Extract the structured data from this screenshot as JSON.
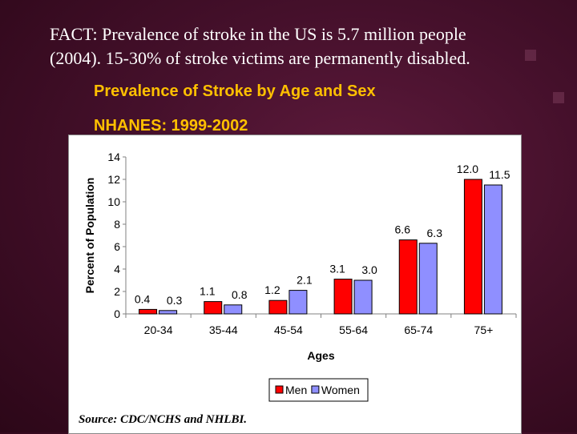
{
  "slide": {
    "fact_line1": "FACT:  Prevalence of stroke in the US is 5.7 million people",
    "fact_line2": "(2004).  15-30% of stroke victims are permanently disabled.",
    "title": "Prevalence of Stroke by Age and Sex",
    "subtitle": "NHANES: 1999-2002",
    "source": "Source: CDC/NCHS and NHLBI."
  },
  "chart_data": {
    "type": "bar",
    "categories": [
      "20-34",
      "35-44",
      "45-54",
      "55-64",
      "65-74",
      "75+"
    ],
    "series": [
      {
        "name": "Men",
        "values": [
          0.4,
          1.1,
          1.2,
          3.1,
          6.6,
          12.0
        ],
        "labels": [
          "0.4",
          "1.1",
          "1.2",
          "3.1",
          "6.6",
          "12.0"
        ],
        "color": "#ff0000"
      },
      {
        "name": "Women",
        "values": [
          0.3,
          0.8,
          2.1,
          3.0,
          6.3,
          11.5
        ],
        "labels": [
          "0.3",
          "0.8",
          "2.1",
          "3.0",
          "6.3",
          "11.5"
        ],
        "color": "#8f8fff"
      }
    ],
    "xlabel": "Ages",
    "ylabel": "Percent of Population",
    "ylim": [
      0,
      14
    ],
    "yticks": [
      0,
      2,
      4,
      6,
      8,
      10,
      12,
      14
    ],
    "legend_position": "bottom",
    "grid": false
  }
}
